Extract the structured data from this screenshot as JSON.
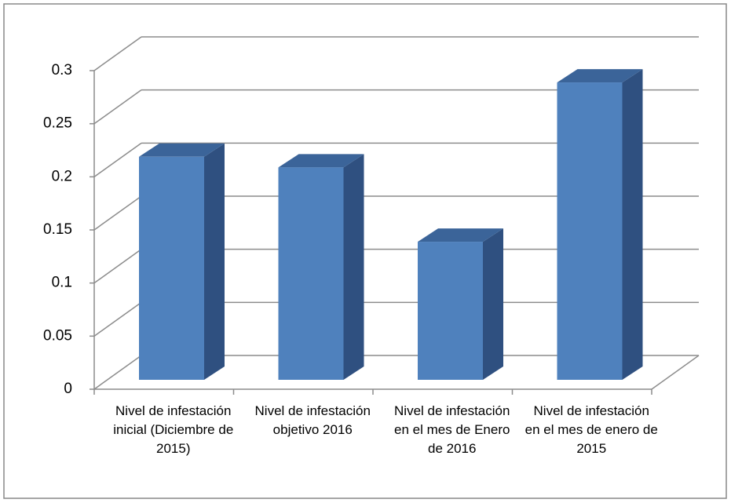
{
  "chart_data": {
    "type": "bar3d",
    "categories": [
      "Nivel de infestación inicial (Diciembre de 2015)",
      "Nivel de infestación objetivo 2016",
      "Nivel de infestación en el mes de Enero de 2016",
      "Nivel de infestación en el mes de enero de 2015"
    ],
    "values": [
      0.21,
      0.2,
      0.13,
      0.28
    ],
    "color": "#4f81bd",
    "ylim": [
      0,
      0.3
    ],
    "yticks": [
      0,
      0.05,
      0.1,
      0.15,
      0.2,
      0.25,
      0.3
    ],
    "grid": true
  }
}
